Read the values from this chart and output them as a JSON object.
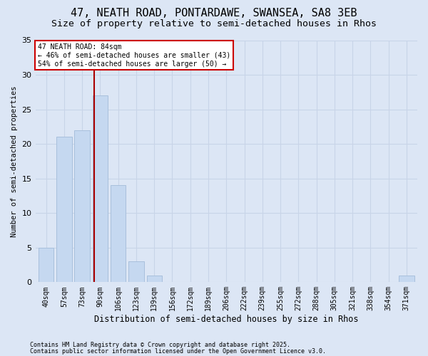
{
  "title": "47, NEATH ROAD, PONTARDAWE, SWANSEA, SA8 3EB",
  "subtitle": "Size of property relative to semi-detached houses in Rhos",
  "xlabel": "Distribution of semi-detached houses by size in Rhos",
  "ylabel": "Number of semi-detached properties",
  "categories": [
    "40sqm",
    "57sqm",
    "73sqm",
    "90sqm",
    "106sqm",
    "123sqm",
    "139sqm",
    "156sqm",
    "172sqm",
    "189sqm",
    "206sqm",
    "222sqm",
    "239sqm",
    "255sqm",
    "272sqm",
    "288sqm",
    "305sqm",
    "321sqm",
    "338sqm",
    "354sqm",
    "371sqm"
  ],
  "values": [
    5,
    21,
    22,
    27,
    14,
    3,
    1,
    0,
    0,
    0,
    0,
    0,
    0,
    0,
    0,
    0,
    0,
    0,
    0,
    0,
    1
  ],
  "bar_color": "#c5d8f0",
  "bar_edge_color": "#a8c0dc",
  "grid_color": "#c8d4e8",
  "background_color": "#dce6f5",
  "vline_color": "#aa0000",
  "annotation_title": "47 NEATH ROAD: 84sqm",
  "annotation_line1": "← 46% of semi-detached houses are smaller (43)",
  "annotation_line2": "54% of semi-detached houses are larger (50) →",
  "annotation_box_color": "#ffffff",
  "annotation_box_edge": "#cc0000",
  "footnote1": "Contains HM Land Registry data © Crown copyright and database right 2025.",
  "footnote2": "Contains public sector information licensed under the Open Government Licence v3.0.",
  "ylim": [
    0,
    35
  ],
  "yticks": [
    0,
    5,
    10,
    15,
    20,
    25,
    30,
    35
  ],
  "title_fontsize": 11,
  "subtitle_fontsize": 9.5
}
